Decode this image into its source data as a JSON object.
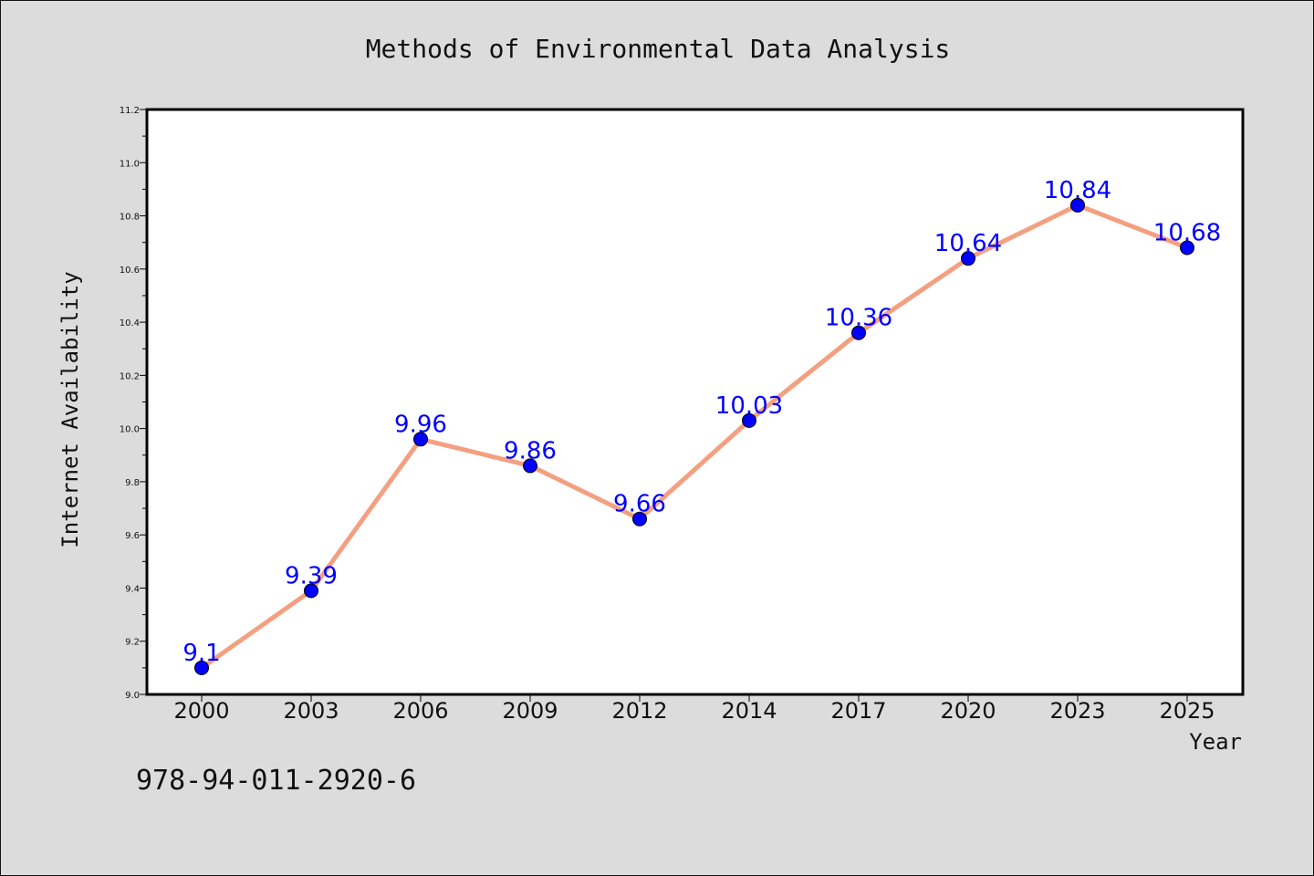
{
  "chart_data": {
    "type": "line",
    "title": "Methods of Environmental Data Analysis",
    "xlabel": "Year",
    "ylabel": "Internet Availability",
    "categories": [
      "2000",
      "2003",
      "2006",
      "2009",
      "2012",
      "2014",
      "2017",
      "2020",
      "2023",
      "2025"
    ],
    "series": [
      {
        "values": [
          9.1,
          9.39,
          9.96,
          9.86,
          9.66,
          10.03,
          10.36,
          10.64,
          10.84,
          10.68
        ],
        "labels": [
          "9.1",
          "9.39",
          "9.96",
          "9.86",
          "9.66",
          "10.03",
          "10.36",
          "10.64",
          "10.84",
          "10.68"
        ],
        "line_color": "#f4a080",
        "marker_color": "#0000ff",
        "label_color": "#0000ff"
      }
    ],
    "ylim": [
      9.0,
      11.2
    ],
    "yticks": [
      "9.0",
      "9.2",
      "9.4",
      "9.6",
      "9.8",
      "10.0",
      "10.2",
      "10.4",
      "10.6",
      "10.8",
      "11.0",
      "11.2"
    ],
    "grid": false,
    "background_color": "#dcdcdc",
    "plot_background_color": "#ffffff"
  },
  "annotation": {
    "isbn": "978-94-011-2920-6"
  }
}
